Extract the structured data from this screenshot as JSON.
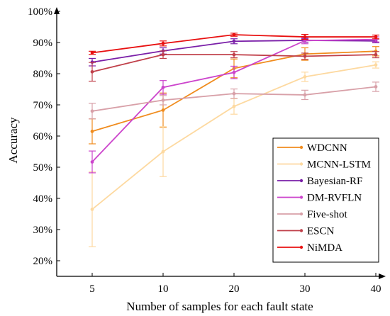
{
  "chart_data": {
    "type": "line",
    "title": "",
    "xlabel": "Number of samples for each fault state",
    "ylabel": "Accuracy",
    "x": [
      "5",
      "10",
      "20",
      "30",
      "40"
    ],
    "ylim": [
      15,
      100
    ],
    "yticks": [
      20,
      30,
      40,
      50,
      60,
      70,
      80,
      90,
      100
    ],
    "ytick_labels": [
      "20%",
      "30%",
      "40%",
      "50%",
      "60%",
      "70%",
      "80%",
      "90%",
      "100%"
    ],
    "grid": false,
    "legend_position": "bottom-right",
    "series": [
      {
        "name": "WDCNN",
        "color": "#f08c1e",
        "values": [
          61.5,
          68.3,
          81.7,
          86.3,
          87.2
        ],
        "errors": [
          4.0,
          5.5,
          3.0,
          2.0,
          1.5
        ]
      },
      {
        "name": "MCNN-LSTM",
        "color": "#fdd9a0",
        "values": [
          36.5,
          55.0,
          69.5,
          79.0,
          82.8
        ],
        "errors": [
          12.0,
          8.0,
          2.5,
          1.5,
          1.0
        ]
      },
      {
        "name": "Bayesian-RF",
        "color": "#7a1fa8",
        "values": [
          83.7,
          87.3,
          90.4,
          90.7,
          90.5
        ],
        "errors": [
          1.2,
          1.0,
          0.8,
          0.6,
          0.6
        ]
      },
      {
        "name": "DM-RVFLN",
        "color": "#cc44cc",
        "values": [
          51.7,
          75.6,
          80.4,
          90.6,
          91.0
        ],
        "errors": [
          3.5,
          2.2,
          2.0,
          1.0,
          0.8
        ]
      },
      {
        "name": "Five-shot",
        "color": "#d8a0a8",
        "values": [
          68.0,
          71.5,
          73.6,
          73.2,
          75.8
        ],
        "errors": [
          2.5,
          1.5,
          1.5,
          1.5,
          1.5
        ]
      },
      {
        "name": "ESCN",
        "color": "#c0404a",
        "values": [
          80.6,
          86.1,
          86.1,
          85.6,
          86.1
        ],
        "errors": [
          3.0,
          1.2,
          1.0,
          1.0,
          1.0
        ]
      },
      {
        "name": "NiMDA",
        "color": "#e81010",
        "values": [
          86.7,
          89.7,
          92.5,
          91.8,
          91.8
        ],
        "errors": [
          0.5,
          0.8,
          0.5,
          0.8,
          0.6
        ]
      }
    ]
  }
}
